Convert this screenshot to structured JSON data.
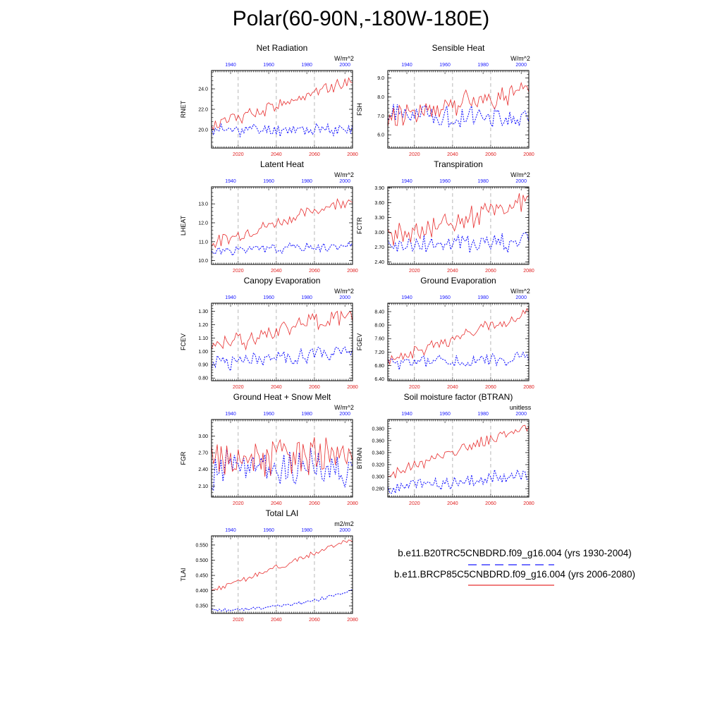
{
  "title": "Polar(60-90N,-180W-180E)",
  "colors": {
    "case1": "#1a1aff",
    "case2": "#e83030",
    "top_ticks": "#1a1aff",
    "bottom_ticks": "#e02020"
  },
  "top_axis": {
    "ticks": [
      1940,
      1960,
      1980,
      2000
    ],
    "range": [
      1930,
      2004
    ]
  },
  "bottom_axis": {
    "ticks": [
      2020,
      2040,
      2060,
      2080
    ],
    "range": [
      2006,
      2080
    ]
  },
  "legend": {
    "case1_label": "b.e11.B20TRC5CNBDRD.f09_g16.004 (yrs 1930-2004)",
    "case2_label": "b.e11.BRCP85C5CNBDRD.f09_g16.004 (yrs 2006-2080)"
  },
  "chart_data": [
    {
      "type": "line",
      "name": "Net Radiation",
      "title": "Net Radiation",
      "ylabel": "RNET",
      "units": "W/m^2",
      "ylim": [
        18.2,
        25.8
      ],
      "yticks": [
        20.0,
        22.0,
        24.0
      ],
      "ytick_labels": [
        "20.0",
        "22.0",
        "24.0"
      ],
      "series": [
        {
          "name": "case1",
          "start": 20.0,
          "end": 20.0,
          "amp": 0.85,
          "seed": 11
        },
        {
          "name": "case2",
          "start": 20.3,
          "end": 24.9,
          "amp": 0.9,
          "seed": 12
        }
      ]
    },
    {
      "type": "line",
      "name": "Sensible Heat",
      "title": "Sensible Heat",
      "ylabel": "FSH",
      "units": "W/m^2",
      "ylim": [
        5.3,
        9.4
      ],
      "yticks": [
        6.0,
        7.0,
        8.0,
        9.0
      ],
      "ytick_labels": [
        "6.0",
        "7.0",
        "8.0",
        "9.0"
      ],
      "series": [
        {
          "name": "case1",
          "start": 7.1,
          "end": 6.9,
          "amp": 0.75,
          "seed": 21
        },
        {
          "name": "case2",
          "start": 7.0,
          "end": 8.3,
          "amp": 0.85,
          "seed": 22
        }
      ]
    },
    {
      "type": "line",
      "name": "Latent Heat",
      "title": "Latent Heat",
      "ylabel": "LHEAT",
      "units": "W/m^2",
      "ylim": [
        9.8,
        13.9
      ],
      "yticks": [
        10.0,
        11.0,
        12.0,
        13.0
      ],
      "ytick_labels": [
        "10.0",
        "11.0",
        "12.0",
        "13.0"
      ],
      "series": [
        {
          "name": "case1",
          "start": 10.5,
          "end": 10.8,
          "amp": 0.35,
          "seed": 31
        },
        {
          "name": "case2",
          "start": 10.9,
          "end": 13.3,
          "amp": 0.45,
          "seed": 32
        }
      ]
    },
    {
      "type": "line",
      "name": "Transpiration",
      "title": "Transpiration",
      "ylabel": "FCTR",
      "units": "W/m^2",
      "ylim": [
        2.35,
        3.92
      ],
      "yticks": [
        2.4,
        2.7,
        3.0,
        3.3,
        3.6,
        3.9
      ],
      "ytick_labels": [
        "2.40",
        "2.70",
        "3.00",
        "3.30",
        "3.60",
        "3.90"
      ],
      "series": [
        {
          "name": "case1",
          "start": 2.72,
          "end": 2.82,
          "amp": 0.3,
          "seed": 41
        },
        {
          "name": "case2",
          "start": 2.85,
          "end": 3.65,
          "amp": 0.35,
          "seed": 42
        }
      ]
    },
    {
      "type": "line",
      "name": "Canopy Evaporation",
      "title": "Canopy Evaporation",
      "ylabel": "FCEV",
      "units": "W/m^2",
      "ylim": [
        0.78,
        1.36
      ],
      "yticks": [
        0.8,
        0.9,
        1.0,
        1.1,
        1.2,
        1.3
      ],
      "ytick_labels": [
        "0.80",
        "0.90",
        "1.00",
        "1.10",
        "1.20",
        "1.30"
      ],
      "series": [
        {
          "name": "case1",
          "start": 0.91,
          "end": 0.99,
          "amp": 0.09,
          "seed": 51
        },
        {
          "name": "case2",
          "start": 1.03,
          "end": 1.29,
          "amp": 0.1,
          "seed": 52
        }
      ]
    },
    {
      "type": "line",
      "name": "Ground Evaporation",
      "title": "Ground Evaporation",
      "ylabel": "FGEV",
      "units": "W/m^2",
      "ylim": [
        6.35,
        8.65
      ],
      "yticks": [
        6.4,
        6.8,
        7.2,
        7.6,
        8.0,
        8.4
      ],
      "ytick_labels": [
        "6.40",
        "6.80",
        "7.20",
        "7.60",
        "8.00",
        "8.40"
      ],
      "series": [
        {
          "name": "case1",
          "start": 6.85,
          "end": 7.0,
          "amp": 0.28,
          "seed": 61
        },
        {
          "name": "case2",
          "start": 6.95,
          "end": 8.35,
          "amp": 0.25,
          "seed": 62
        }
      ]
    },
    {
      "type": "line",
      "name": "Ground Heat + Snow Melt",
      "title": "Ground Heat + Snow Melt",
      "ylabel": "FGR",
      "units": "W/m^2",
      "ylim": [
        1.9,
        3.3
      ],
      "yticks": [
        2.1,
        2.4,
        2.7,
        3.0
      ],
      "ytick_labels": [
        "2.10",
        "2.40",
        "2.70",
        "3.00"
      ],
      "series": [
        {
          "name": "case1",
          "start": 2.45,
          "end": 2.4,
          "amp": 0.5,
          "seed": 71
        },
        {
          "name": "case2",
          "start": 2.55,
          "end": 2.7,
          "amp": 0.45,
          "seed": 72
        }
      ]
    },
    {
      "type": "line",
      "name": "Soil moisture factor (BTRAN)",
      "title": "Soil moisture factor (BTRAN)",
      "ylabel": "BTRAN",
      "units": "unitless",
      "ylim": [
        0.266,
        0.395
      ],
      "yticks": [
        0.28,
        0.3,
        0.32,
        0.34,
        0.36,
        0.38
      ],
      "ytick_labels": [
        "0.280",
        "0.300",
        "0.320",
        "0.340",
        "0.360",
        "0.380"
      ],
      "series": [
        {
          "name": "case1",
          "start": 0.281,
          "end": 0.303,
          "amp": 0.018,
          "seed": 81
        },
        {
          "name": "case2",
          "start": 0.302,
          "end": 0.385,
          "amp": 0.012,
          "seed": 82
        }
      ]
    },
    {
      "type": "line",
      "name": "Total LAI",
      "title": "Total LAI",
      "ylabel": "TLAI",
      "units": "m2/m2",
      "ylim": [
        0.325,
        0.58
      ],
      "yticks": [
        0.35,
        0.4,
        0.45,
        0.5,
        0.55
      ],
      "ytick_labels": [
        "0.350",
        "0.400",
        "0.450",
        "0.500",
        "0.550"
      ],
      "series": [
        {
          "name": "case1",
          "start": 0.336,
          "end": 0.401,
          "amp": 0.008,
          "seed": 91,
          "curve": 2.2
        },
        {
          "name": "case2",
          "start": 0.398,
          "end": 0.568,
          "amp": 0.012,
          "seed": 92
        }
      ]
    }
  ]
}
